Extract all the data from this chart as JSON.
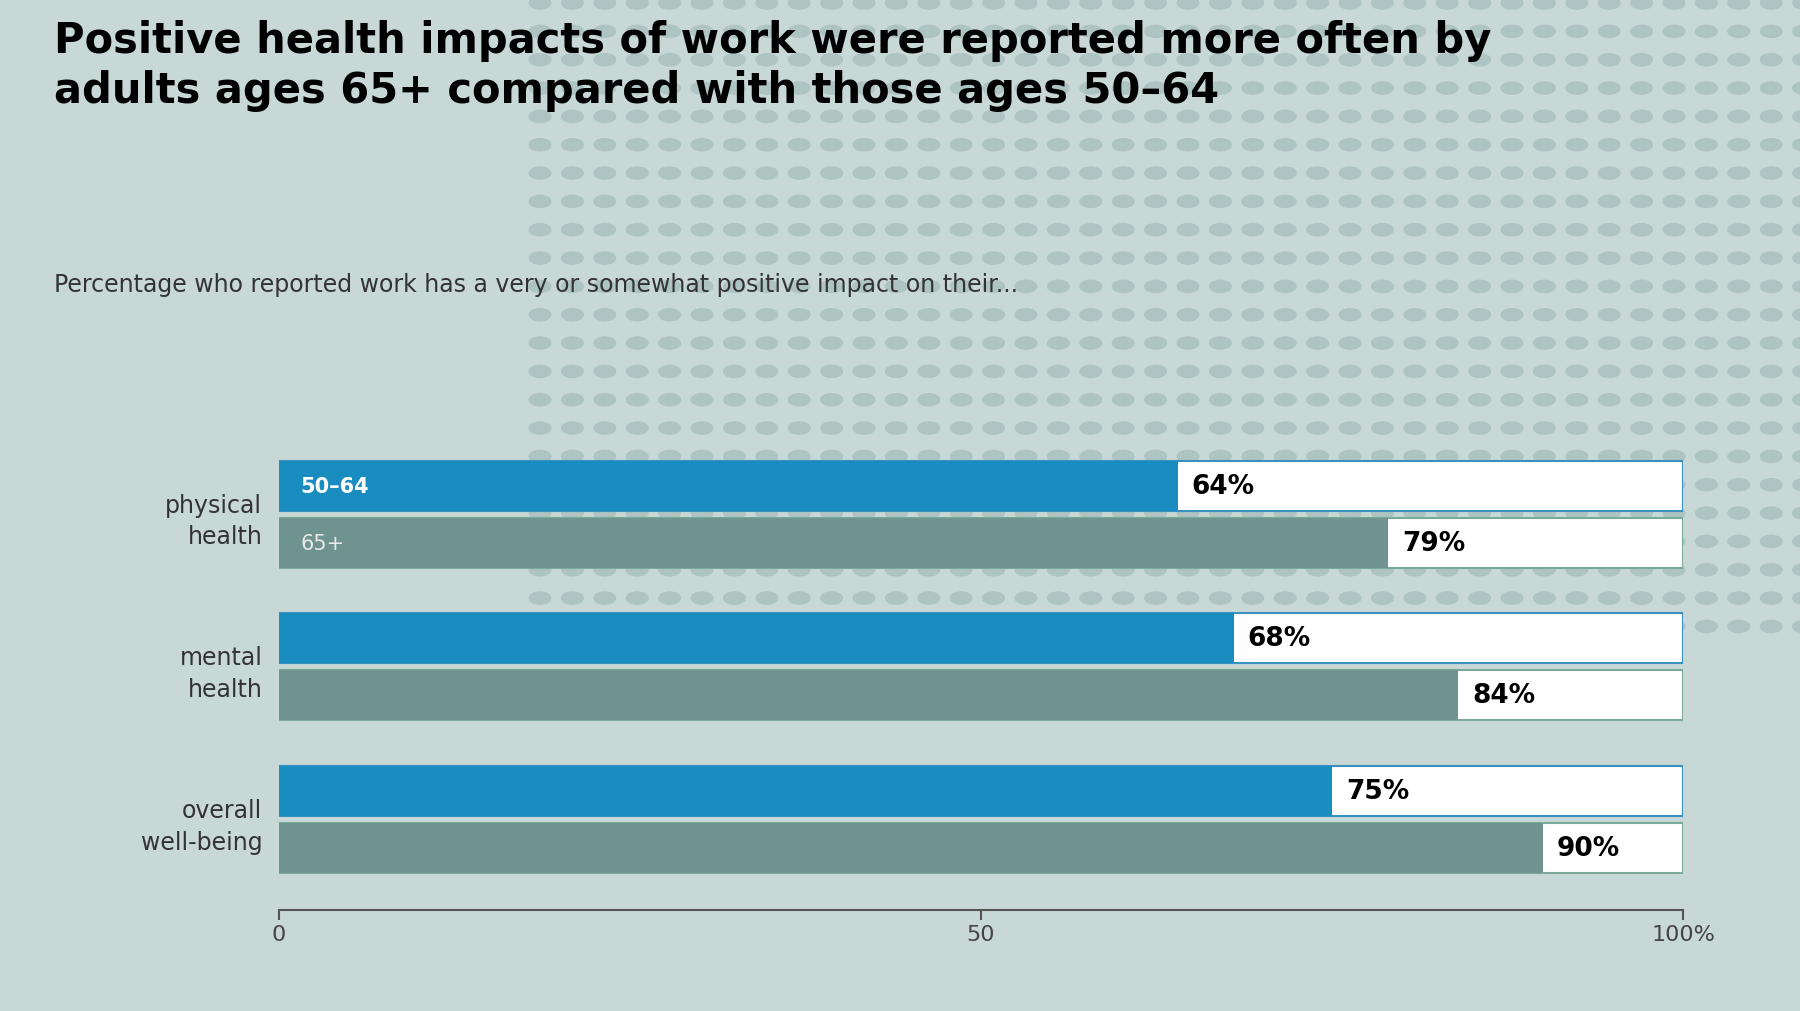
{
  "title": "Positive health impacts of work were reported more often by\nadults ages 65+ compared with those ages 50–64",
  "subtitle": "Percentage who reported work has a very or somewhat positive impact on their...",
  "categories": [
    "physical\nhealth",
    "mental\nhealth",
    "overall\nwell-being"
  ],
  "values_50_64": [
    64,
    68,
    75
  ],
  "values_65plus": [
    79,
    84,
    90
  ],
  "label_50_64": "50–64",
  "label_65plus": "65+",
  "color_50_64": "#1a8dc0",
  "color_65plus": "#6f9490",
  "background_color": "#c8d8d6",
  "dot_color": "#adc4c2",
  "title_fontsize": 30,
  "subtitle_fontsize": 17,
  "xlim": [
    0,
    100
  ],
  "xticks": [
    0,
    50,
    100
  ],
  "xticklabels": [
    "0",
    "50",
    "100%"
  ]
}
